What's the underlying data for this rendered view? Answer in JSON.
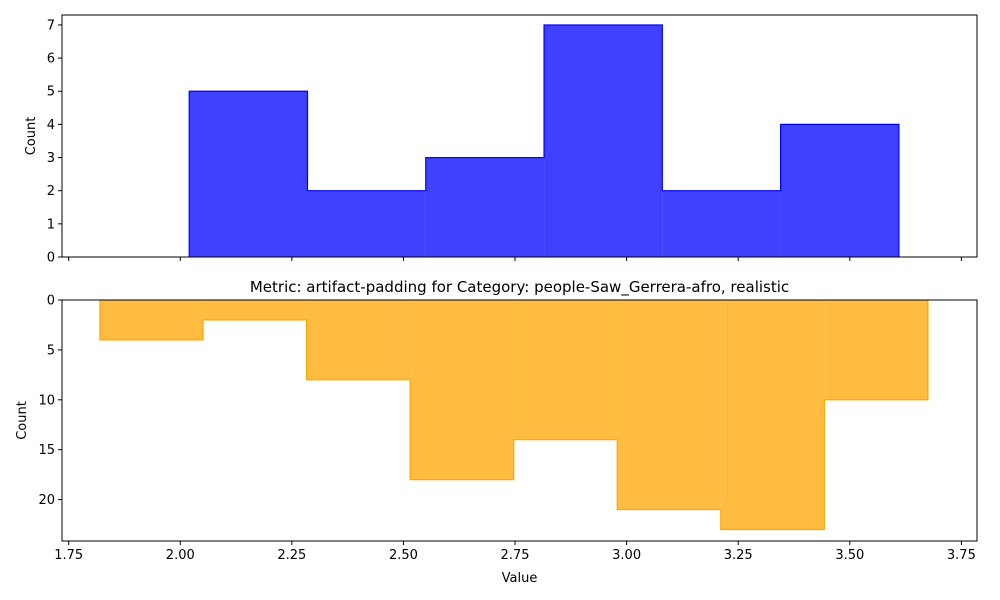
{
  "chart_data": [
    {
      "type": "histogram",
      "position": "top",
      "title": "",
      "xlabel": "",
      "ylabel": "Count",
      "color": "#0000ff",
      "fill_opacity": 0.75,
      "bins": [
        {
          "x0": 2.02,
          "x1": 2.285,
          "count": 5
        },
        {
          "x0": 2.285,
          "x1": 2.55,
          "count": 2
        },
        {
          "x0": 2.55,
          "x1": 2.815,
          "count": 3
        },
        {
          "x0": 2.815,
          "x1": 3.08,
          "count": 7
        },
        {
          "x0": 3.08,
          "x1": 3.345,
          "count": 2
        },
        {
          "x0": 3.345,
          "x1": 3.61,
          "count": 4
        }
      ],
      "xlim": [
        1.735,
        3.785
      ],
      "ylim": [
        0,
        7.3
      ],
      "yticks": [
        0,
        1,
        2,
        3,
        4,
        5,
        6,
        7
      ],
      "xticks": [
        1.75,
        2.0,
        2.25,
        2.5,
        2.75,
        3.0,
        3.25,
        3.5,
        3.75
      ],
      "show_xtick_labels": false,
      "y_inverted": false
    },
    {
      "type": "histogram",
      "position": "bottom",
      "title": "Metric: artifact-padding for Category: people-Saw_Gerrera-afro, realistic",
      "xlabel": "Value",
      "ylabel": "Count",
      "color": "#ffa500",
      "fill_opacity": 0.75,
      "bins": [
        {
          "x0": 1.82,
          "x1": 2.051,
          "count": 4
        },
        {
          "x0": 2.051,
          "x1": 2.283,
          "count": 2
        },
        {
          "x0": 2.283,
          "x1": 2.515,
          "count": 8
        },
        {
          "x0": 2.515,
          "x1": 2.747,
          "count": 18
        },
        {
          "x0": 2.747,
          "x1": 2.979,
          "count": 14
        },
        {
          "x0": 2.979,
          "x1": 3.211,
          "count": 21
        },
        {
          "x0": 3.211,
          "x1": 3.443,
          "count": 23
        },
        {
          "x0": 3.443,
          "x1": 3.675,
          "count": 10
        }
      ],
      "xlim": [
        1.735,
        3.785
      ],
      "ylim": [
        0,
        24.15
      ],
      "yticks": [
        0,
        5,
        10,
        15,
        20
      ],
      "xticks": [
        1.75,
        2.0,
        2.25,
        2.5,
        2.75,
        3.0,
        3.25,
        3.5,
        3.75
      ],
      "xtick_labels": [
        "1.75",
        "2.00",
        "2.25",
        "2.50",
        "2.75",
        "3.00",
        "3.25",
        "3.50",
        "3.75"
      ],
      "show_xtick_labels": true,
      "y_inverted": true
    }
  ]
}
